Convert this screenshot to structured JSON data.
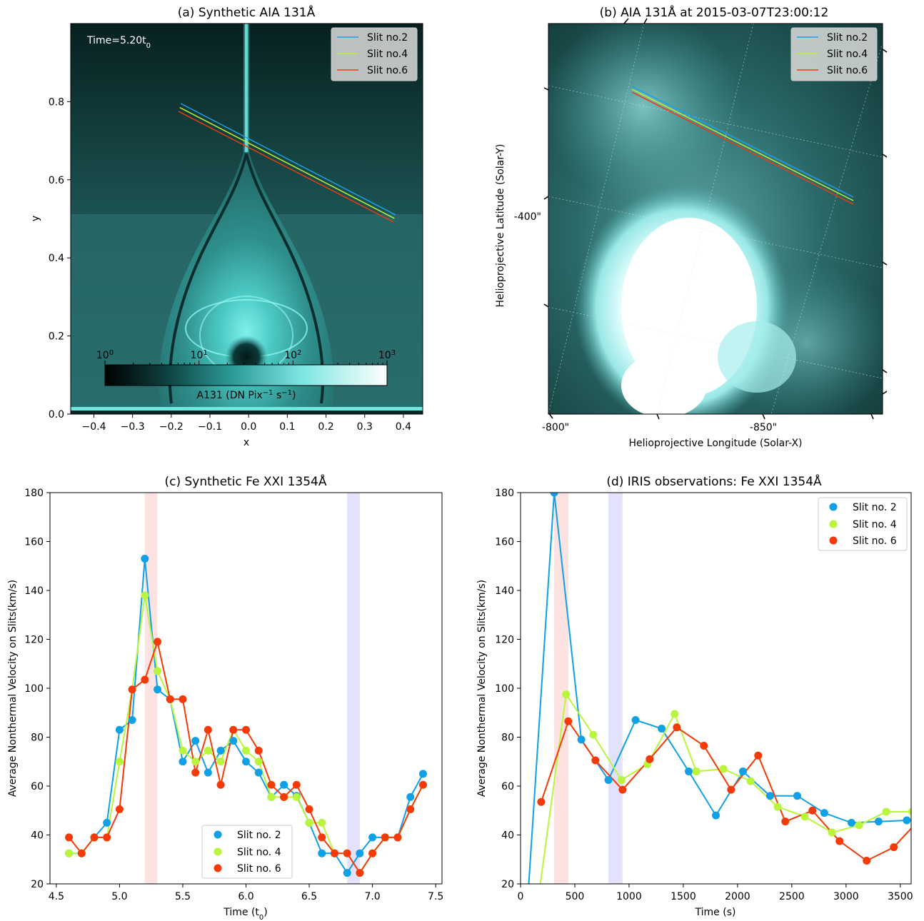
{
  "chart_data": [
    {
      "id": "a",
      "type": "heatmap",
      "title": "(a) Synthetic AIA 131Å",
      "xlabel": "x",
      "ylabel": "y",
      "xlim": [
        -0.46,
        0.45
      ],
      "ylim": [
        0.0,
        1.0
      ],
      "xticks": [
        "−0.4",
        "−0.3",
        "−0.2",
        "−0.1",
        "0.0",
        "0.1",
        "0.2",
        "0.3",
        "0.4"
      ],
      "xtick_values": [
        -0.4,
        -0.3,
        -0.2,
        -0.1,
        0.0,
        0.1,
        0.2,
        0.3,
        0.4
      ],
      "yticks": [
        "0.0",
        "0.2",
        "0.4",
        "0.6",
        "0.8"
      ],
      "ytick_values": [
        0.0,
        0.2,
        0.4,
        0.6,
        0.8
      ],
      "annotation": "Time=5.20t",
      "annotation_sub": "0",
      "colorbar": {
        "label": "A131 (DN Pix",
        "label_sup1": "−1",
        "label_mid": " s",
        "label_sup2": "−1",
        "label_end": ")",
        "scale": "log",
        "range": [
          1,
          1000
        ],
        "ticks": [
          {
            "base": "10",
            "exp": "0",
            "value": 1
          },
          {
            "base": "10",
            "exp": "1",
            "value": 10
          },
          {
            "base": "10",
            "exp": "2",
            "value": 100
          },
          {
            "base": "10",
            "exp": "3",
            "value": 1000
          }
        ]
      },
      "slits": [
        {
          "name": "Slit no.2",
          "color": "#1e9fe6",
          "x": [
            -0.175,
            0.38
          ],
          "y": [
            0.795,
            0.51
          ]
        },
        {
          "name": "Slit no.4",
          "color": "#b8f03c",
          "x": [
            -0.178,
            0.377
          ],
          "y": [
            0.785,
            0.501
          ]
        },
        {
          "name": "Slit no.6",
          "color": "#f03a10",
          "x": [
            -0.181,
            0.374
          ],
          "y": [
            0.775,
            0.492
          ]
        }
      ],
      "legend_position": "top-right"
    },
    {
      "id": "b",
      "type": "heatmap",
      "title": "(b) AIA 131Å at 2015-03-07T23:00:12",
      "xlabel": "Helioprojective Longitude (Solar-X)",
      "ylabel": "Helioprojective Latitude (Solar-Y)",
      "xticks": [
        "-800\"",
        "-850\""
      ],
      "yticks": [
        "-400\""
      ],
      "legend": [
        "Slit no.2",
        "Slit no.4",
        "Slit no.6"
      ],
      "legend_position": "top-right"
    },
    {
      "id": "c",
      "type": "scatter",
      "title": "(c) Synthetic Fe XXI 1354Å",
      "xlabel": "Time (t",
      "xlabel_sub": "0",
      "xlabel_end": ")",
      "ylabel": "Average Nonthermal Velocity on Slits(km/s)",
      "xlim": [
        4.45,
        7.55
      ],
      "ylim": [
        20,
        180
      ],
      "xticks": [
        4.5,
        5.0,
        5.5,
        6.0,
        6.5,
        7.0,
        7.5
      ],
      "xtick_labels": [
        "4.5",
        "5.0",
        "5.5",
        "6.0",
        "6.5",
        "7.0",
        "7.5"
      ],
      "yticks": [
        20,
        40,
        60,
        80,
        100,
        120,
        140,
        160,
        180
      ],
      "bands": [
        {
          "x0": 5.2,
          "x1": 5.3,
          "color": "#fde2e2"
        },
        {
          "x0": 6.8,
          "x1": 6.9,
          "color": "#e2e2fc"
        }
      ],
      "x": [
        4.6,
        4.7,
        4.8,
        4.9,
        5.0,
        5.1,
        5.2,
        5.3,
        5.4,
        5.5,
        5.6,
        5.7,
        5.8,
        5.9,
        6.0,
        6.1,
        6.2,
        6.3,
        6.4,
        6.5,
        6.6,
        6.7,
        6.8,
        6.9,
        7.0,
        7.1,
        7.2,
        7.3,
        7.4
      ],
      "series": [
        {
          "name": "Slit no. 2",
          "color": "#0fa0e6",
          "values": [
            32.5,
            32.5,
            39,
            45,
            83,
            87,
            153,
            99.5,
            95.5,
            70,
            78.5,
            65.5,
            74.5,
            78.5,
            70,
            65.5,
            55.5,
            60.5,
            56,
            45,
            32.5,
            32.5,
            24.5,
            32.5,
            39,
            39,
            39,
            55.5,
            65
          ]
        },
        {
          "name": "Slit no. 4",
          "color": "#b8f53c",
          "values": [
            32.5,
            32.5,
            39,
            39,
            70,
            99.5,
            138,
            107,
            95.5,
            74.5,
            70,
            74.5,
            70,
            83,
            74.5,
            70,
            55.5,
            55.5,
            55.5,
            45,
            45,
            32.5,
            32.5,
            24.5,
            32.5,
            39,
            39,
            50.5,
            60.5
          ]
        },
        {
          "name": "Slit no. 6",
          "color": "#f53a08",
          "values": [
            39,
            32.5,
            39,
            39,
            50.5,
            99.5,
            103.5,
            119,
            95.5,
            95.5,
            65.5,
            83,
            60.5,
            83,
            83,
            74.5,
            60.5,
            55.5,
            60.5,
            50.5,
            39,
            32.5,
            32.5,
            24.5,
            32.5,
            39,
            39,
            50.5,
            60.5
          ]
        }
      ],
      "legend_position": "lower-right"
    },
    {
      "id": "d",
      "type": "scatter",
      "title": "(d) IRIS observations: Fe XXI 1354Å",
      "xlabel": "Time (s)",
      "ylabel": "Average Nonthermal Velocity on Slits(km/s)",
      "xlim": [
        0,
        3600
      ],
      "ylim": [
        20,
        180
      ],
      "xticks": [
        0,
        500,
        1000,
        1500,
        2000,
        2500,
        3000,
        3500
      ],
      "yticks": [
        20,
        40,
        60,
        80,
        100,
        120,
        140,
        160,
        180
      ],
      "bands": [
        {
          "x0": 310,
          "x1": 440,
          "color": "#fde2e2"
        },
        {
          "x0": 810,
          "x1": 940,
          "color": "#e2e2fc"
        }
      ],
      "series": [
        {
          "name": "Slit no. 2",
          "color": "#0fa0e6",
          "x": [
            70,
            310,
            560,
            810,
            1060,
            1300,
            1550,
            1800,
            2050,
            2300,
            2550,
            2800,
            3050,
            3300,
            3560
          ],
          "values": [
            16,
            180,
            79,
            62.5,
            87,
            83.5,
            66,
            48,
            66,
            56,
            56,
            49,
            45,
            45.5,
            46
          ]
        },
        {
          "name": "Slit no. 4",
          "color": "#b8f53c",
          "x": [
            170,
            420,
            670,
            930,
            1170,
            1420,
            1620,
            1870,
            2120,
            2370,
            2620,
            2870,
            3120,
            3370,
            3610
          ],
          "values": [
            16,
            97.5,
            81,
            62.5,
            69,
            89.5,
            66,
            67,
            62,
            51.5,
            47.5,
            41,
            44,
            49.5,
            49.5
          ]
        },
        {
          "name": "Slit no. 6",
          "color": "#f53a08",
          "x": [
            190,
            440,
            690,
            940,
            1190,
            1440,
            1690,
            1940,
            2190,
            2440,
            2690,
            2940,
            3190,
            3440,
            3690
          ],
          "values": [
            53.5,
            86.5,
            70.5,
            58.5,
            71,
            84,
            76.5,
            58.5,
            72.5,
            45.5,
            50,
            37.5,
            29.5,
            35,
            47
          ]
        }
      ],
      "legend_position": "top-right"
    }
  ]
}
